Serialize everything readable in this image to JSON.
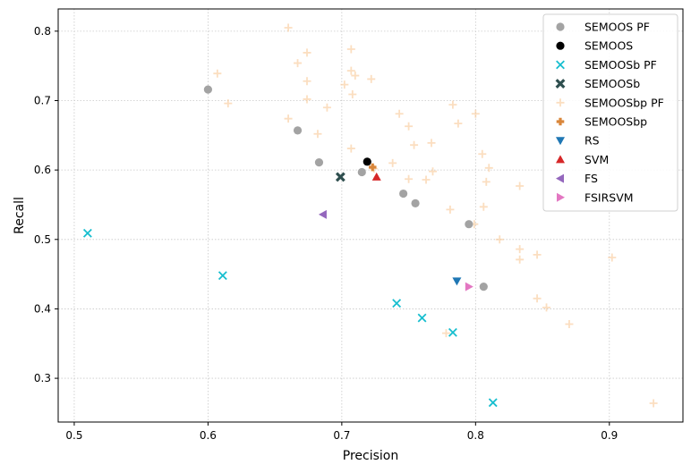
{
  "chart_data": {
    "type": "scatter",
    "title": "",
    "xlabel": "Precision",
    "ylabel": "Recall",
    "xlim": [
      0.488,
      0.955
    ],
    "ylim": [
      0.237,
      0.832
    ],
    "xticks": [
      0.5,
      0.6,
      0.7,
      0.8,
      0.9
    ],
    "yticks": [
      0.3,
      0.4,
      0.5,
      0.6,
      0.7,
      0.8
    ],
    "xtick_labels": [
      "0.5",
      "0.6",
      "0.7",
      "0.8",
      "0.9"
    ],
    "ytick_labels": [
      "0.3",
      "0.4",
      "0.5",
      "0.6",
      "0.7",
      "0.8"
    ],
    "grid": true,
    "legend_position": "top-right",
    "series": [
      {
        "name": "SEMOOSbp PF",
        "marker": "plus",
        "color": "#f9c896",
        "opacity": 0.6,
        "points": [
          [
            0.66,
            0.805
          ],
          [
            0.707,
            0.774
          ],
          [
            0.674,
            0.769
          ],
          [
            0.667,
            0.754
          ],
          [
            0.707,
            0.743
          ],
          [
            0.607,
            0.739
          ],
          [
            0.71,
            0.736
          ],
          [
            0.722,
            0.731
          ],
          [
            0.674,
            0.728
          ],
          [
            0.702,
            0.723
          ],
          [
            0.708,
            0.709
          ],
          [
            0.674,
            0.702
          ],
          [
            0.615,
            0.696
          ],
          [
            0.783,
            0.694
          ],
          [
            0.689,
            0.69
          ],
          [
            0.743,
            0.681
          ],
          [
            0.8,
            0.681
          ],
          [
            0.66,
            0.674
          ],
          [
            0.787,
            0.667
          ],
          [
            0.75,
            0.663
          ],
          [
            0.682,
            0.652
          ],
          [
            0.767,
            0.639
          ],
          [
            0.754,
            0.636
          ],
          [
            0.707,
            0.631
          ],
          [
            0.805,
            0.623
          ],
          [
            0.738,
            0.61
          ],
          [
            0.81,
            0.603
          ],
          [
            0.768,
            0.598
          ],
          [
            0.724,
            0.602
          ],
          [
            0.763,
            0.586
          ],
          [
            0.75,
            0.587
          ],
          [
            0.808,
            0.583
          ],
          [
            0.833,
            0.577
          ],
          [
            0.781,
            0.543
          ],
          [
            0.806,
            0.547
          ],
          [
            0.799,
            0.522
          ],
          [
            0.818,
            0.5
          ],
          [
            0.833,
            0.486
          ],
          [
            0.846,
            0.478
          ],
          [
            0.902,
            0.474
          ],
          [
            0.833,
            0.471
          ],
          [
            0.846,
            0.415
          ],
          [
            0.853,
            0.402
          ],
          [
            0.87,
            0.378
          ],
          [
            0.778,
            0.365
          ],
          [
            0.933,
            0.264
          ]
        ]
      },
      {
        "name": "SEMOOS PF",
        "marker": "circle",
        "color": "#a3a3a3",
        "opacity": 1,
        "points": [
          [
            0.6,
            0.716
          ],
          [
            0.667,
            0.657
          ],
          [
            0.683,
            0.611
          ],
          [
            0.715,
            0.597
          ],
          [
            0.746,
            0.566
          ],
          [
            0.755,
            0.552
          ],
          [
            0.795,
            0.522
          ],
          [
            0.806,
            0.432
          ]
        ]
      },
      {
        "name": "SEMOOSb PF",
        "marker": "x",
        "color": "#17becf",
        "opacity": 1,
        "points": [
          [
            0.51,
            0.509
          ],
          [
            0.611,
            0.448
          ],
          [
            0.741,
            0.408
          ],
          [
            0.76,
            0.387
          ],
          [
            0.783,
            0.366
          ],
          [
            0.813,
            0.265
          ]
        ]
      },
      {
        "name": "SEMOOS",
        "marker": "circle",
        "color": "#000000",
        "opacity": 1,
        "points": [
          [
            0.719,
            0.612
          ]
        ]
      },
      {
        "name": "SEMOOSb",
        "marker": "X",
        "color": "#2f4f4f",
        "opacity": 1,
        "points": [
          [
            0.699,
            0.59
          ]
        ]
      },
      {
        "name": "SEMOOSbp",
        "marker": "P",
        "color": "#d9863a",
        "opacity": 1,
        "points": [
          [
            0.723,
            0.604
          ]
        ]
      },
      {
        "name": "RS",
        "marker": "triangle-down",
        "color": "#1f77b4",
        "opacity": 1,
        "points": [
          [
            0.786,
            0.44
          ]
        ]
      },
      {
        "name": "SVM",
        "marker": "triangle-up",
        "color": "#d62728",
        "opacity": 1,
        "points": [
          [
            0.726,
            0.59
          ]
        ]
      },
      {
        "name": "FS",
        "marker": "triangle-left",
        "color": "#9467bd",
        "opacity": 1,
        "points": [
          [
            0.686,
            0.536
          ]
        ]
      },
      {
        "name": "FSIRSVM",
        "marker": "triangle-right",
        "color": "#e377c2",
        "opacity": 1,
        "points": [
          [
            0.795,
            0.432
          ]
        ]
      }
    ],
    "legend_order": [
      "SEMOOS PF",
      "SEMOOS",
      "SEMOOSb PF",
      "SEMOOSb",
      "SEMOOSbp PF",
      "SEMOOSbp",
      "RS",
      "SVM",
      "FS",
      "FSIRSVM"
    ]
  }
}
